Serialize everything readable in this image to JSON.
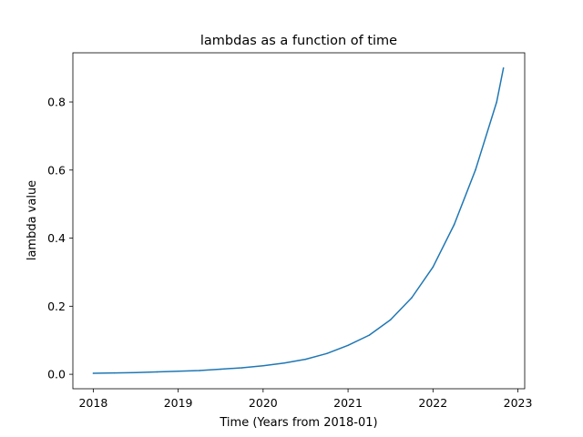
{
  "chart_data": {
    "type": "line",
    "title": "lambdas as a function of time",
    "xlabel": "Time (Years from 2018-01)",
    "ylabel": "lambda value",
    "xlim": [
      2017.76,
      2023.08
    ],
    "ylim": [
      -0.0425,
      0.9445
    ],
    "xticks": [
      2018,
      2019,
      2020,
      2021,
      2022,
      2023
    ],
    "xtick_labels": [
      "2018",
      "2019",
      "2020",
      "2021",
      "2022",
      "2023"
    ],
    "yticks": [
      0.0,
      0.2,
      0.4,
      0.6,
      0.8
    ],
    "ytick_labels": [
      "0.0",
      "0.2",
      "0.4",
      "0.6",
      "0.8"
    ],
    "grid": false,
    "legend": "none",
    "series": [
      {
        "color": "#1f77b4",
        "x": [
          2018.0,
          2018.25,
          2018.5,
          2018.75,
          2019.0,
          2019.25,
          2019.5,
          2019.75,
          2020.0,
          2020.25,
          2020.5,
          2020.75,
          2021.0,
          2021.25,
          2021.5,
          2021.75,
          2022.0,
          2022.25,
          2022.5,
          2022.75,
          2022.83
        ],
        "y": [
          0.003,
          0.004,
          0.005,
          0.007,
          0.009,
          0.011,
          0.015,
          0.019,
          0.025,
          0.033,
          0.044,
          0.061,
          0.085,
          0.115,
          0.16,
          0.225,
          0.315,
          0.44,
          0.6,
          0.8,
          0.9
        ]
      }
    ]
  }
}
